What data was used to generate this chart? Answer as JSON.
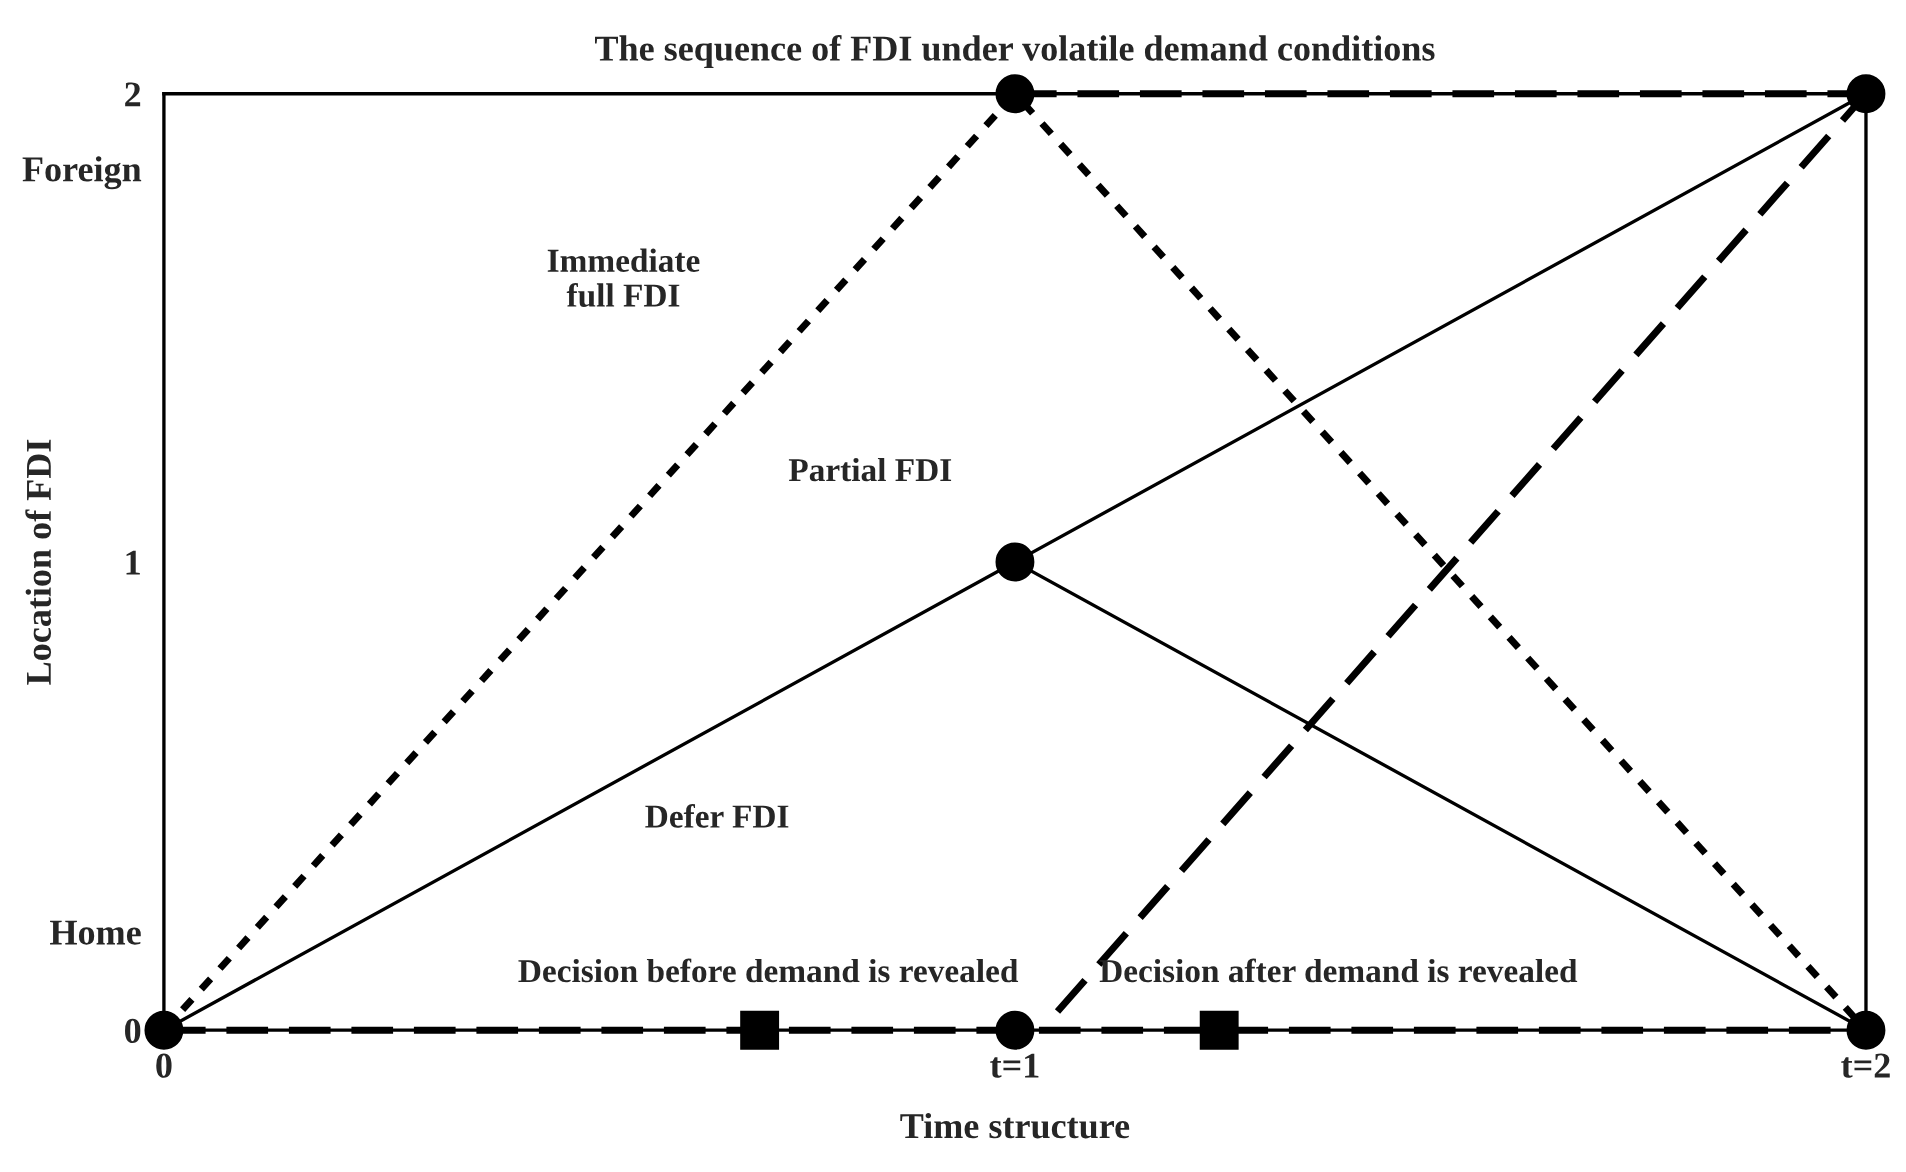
{
  "chart_data": {
    "type": "line",
    "title": "The sequence of FDI under volatile demand conditions",
    "xlabel": "Time structure",
    "ylabel": "Location of FDI",
    "xlim": [
      0,
      2
    ],
    "ylim": [
      0,
      2
    ],
    "xticks": [
      0,
      {
        "value": 1,
        "label": "t=1"
      },
      {
        "value": 2,
        "label": "t=2"
      }
    ],
    "yticks": [
      0,
      {
        "value": 0.21,
        "label": "Home"
      },
      1,
      {
        "value": 1.84,
        "label": "Foreign"
      },
      2
    ],
    "grid": false,
    "legend": false,
    "series": [
      {
        "color": "#000000",
        "x": [
          0,
          1,
          2
        ],
        "values": [
          0,
          2,
          0
        ],
        "line_style": "dotted"
      },
      {
        "color": "#000000",
        "x": [
          0,
          1,
          2
        ],
        "values": [
          0,
          1,
          2
        ],
        "line_style": "solid"
      },
      {
        "color": "#000000",
        "x": [
          1,
          2
        ],
        "values": [
          1,
          0
        ],
        "line_style": "solid"
      },
      {
        "color": "#000000",
        "x": [
          1,
          2
        ],
        "values": [
          2,
          2
        ],
        "line_style": "dashed"
      },
      {
        "color": "#000000",
        "x": [
          1.05,
          2
        ],
        "values": [
          0.04,
          2
        ],
        "line_style": "dashed"
      },
      {
        "color": "#000000",
        "x": [
          0,
          2
        ],
        "values": [
          0,
          0
        ],
        "line_style": "dashed"
      },
      {
        "type": "scatter",
        "color": "#000000",
        "x": [
          0.7,
          1.24
        ],
        "values": [
          0,
          0
        ],
        "marker": "square"
      },
      {
        "type": "scatter",
        "color": "#000000",
        "x": [
          0,
          1,
          2,
          1,
          1,
          2
        ],
        "values": [
          0,
          0,
          0,
          1,
          2,
          2
        ],
        "marker": "circle"
      }
    ],
    "annotations": [
      "Immediate\nfull FDI",
      "Partial FDI",
      "Defer FDI",
      "Decision before demand is revealed",
      "Decision after demand is revealed"
    ]
  }
}
